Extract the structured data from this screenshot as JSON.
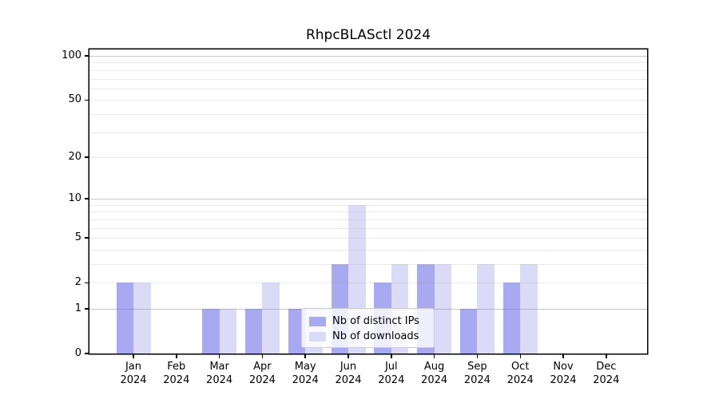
{
  "figure": {
    "title": "RhpcBLASctl 2024"
  },
  "legend": {
    "items": [
      {
        "label": "Nb of distinct IPs",
        "color": "#a9a9f2"
      },
      {
        "label": "Nb of downloads",
        "color": "#dbdbf8"
      }
    ],
    "position": "lower center"
  },
  "chart_data": {
    "type": "bar",
    "title": "RhpcBLASctl 2024",
    "categories": [
      "Jan 2024",
      "Feb 2024",
      "Mar 2024",
      "Apr 2024",
      "May 2024",
      "Jun 2024",
      "Jul 2024",
      "Aug 2024",
      "Sep 2024",
      "Oct 2024",
      "Nov 2024",
      "Dec 2024"
    ],
    "series": [
      {
        "name": "Nb of distinct IPs",
        "color": "#a9a9f2",
        "values": [
          2,
          0,
          1,
          1,
          1,
          3,
          2,
          3,
          1,
          2,
          0,
          0
        ]
      },
      {
        "name": "Nb of downloads",
        "color": "#dbdbf8",
        "values": [
          2,
          0,
          1,
          2,
          1,
          9,
          3,
          3,
          3,
          3,
          0,
          0
        ]
      }
    ],
    "xlabel": "",
    "ylabel": "",
    "yscale": "log1p",
    "ylim": [
      0,
      110
    ],
    "yticks": [
      0,
      1,
      2,
      5,
      10,
      20,
      50,
      100
    ],
    "major_gridlines": [
      1,
      10,
      100
    ],
    "minor_gridlines": [
      2,
      3,
      4,
      5,
      6,
      7,
      8,
      9,
      20,
      30,
      40,
      50,
      60,
      70,
      80,
      90
    ],
    "grid": true,
    "legend_position": "lower center"
  }
}
